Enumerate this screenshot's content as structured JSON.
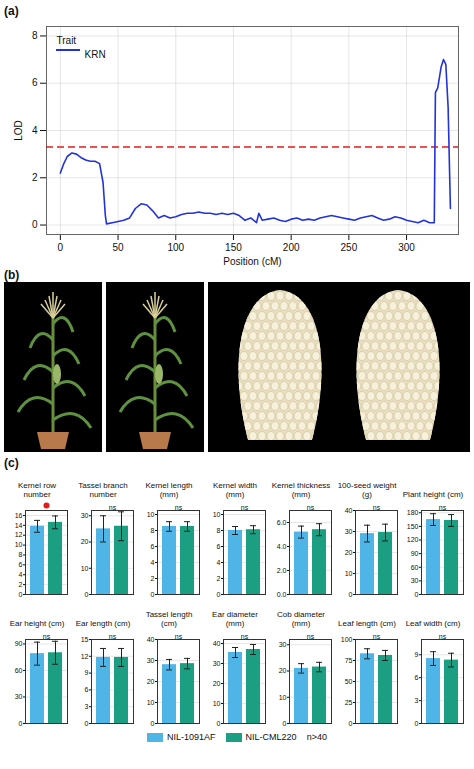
{
  "chart_data": [
    {
      "type": "line",
      "panel": "(a)",
      "xlabel": "Position (cM)",
      "ylabel": "LOD",
      "legend_title": "Trait",
      "legend": "top-left",
      "x": [
        0,
        3,
        6,
        10,
        14,
        18,
        22,
        26,
        30,
        34,
        37,
        39,
        40,
        45,
        50,
        55,
        60,
        65,
        70,
        75,
        80,
        85,
        90,
        95,
        100,
        105,
        110,
        115,
        120,
        125,
        130,
        135,
        140,
        145,
        150,
        155,
        160,
        165,
        170,
        172,
        175,
        180,
        185,
        190,
        195,
        200,
        205,
        210,
        215,
        220,
        225,
        230,
        235,
        240,
        245,
        250,
        255,
        260,
        265,
        270,
        275,
        280,
        285,
        290,
        295,
        300,
        305,
        310,
        315,
        320,
        324,
        325,
        327,
        330,
        332,
        334,
        336,
        338
      ],
      "series": [
        {
          "name": "KRN",
          "color": "#2233dd",
          "values": [
            2.2,
            2.6,
            2.9,
            3.05,
            3.0,
            2.85,
            2.75,
            2.7,
            2.7,
            2.6,
            1.8,
            0.4,
            0.05,
            0.1,
            0.15,
            0.2,
            0.3,
            0.7,
            0.9,
            0.85,
            0.6,
            0.3,
            0.4,
            0.3,
            0.35,
            0.45,
            0.5,
            0.5,
            0.55,
            0.5,
            0.5,
            0.45,
            0.5,
            0.45,
            0.5,
            0.4,
            0.2,
            0.3,
            0.1,
            0.5,
            0.2,
            0.25,
            0.3,
            0.2,
            0.15,
            0.25,
            0.3,
            0.2,
            0.25,
            0.2,
            0.3,
            0.35,
            0.4,
            0.35,
            0.3,
            0.25,
            0.2,
            0.3,
            0.35,
            0.4,
            0.3,
            0.2,
            0.25,
            0.35,
            0.3,
            0.2,
            0.15,
            0.1,
            0.2,
            0.1,
            0.1,
            5.6,
            5.8,
            6.7,
            7.0,
            6.8,
            5.0,
            0.7
          ]
        }
      ],
      "threshold": {
        "value": 3.3,
        "color": "#e41a1c",
        "line_style": "dashed"
      },
      "xlim": [
        -12,
        345
      ],
      "xticks": [
        0,
        50,
        100,
        150,
        200,
        250,
        300
      ],
      "ylim": [
        -0.4,
        8.4
      ],
      "yticks": [
        0,
        2,
        4,
        6,
        8
      ],
      "grid": true
    },
    {
      "type": "bar",
      "panel": "(c)",
      "legend": "bottom",
      "title": "Kernel row number",
      "categories": [
        "NIL-1091AF",
        "NIL-CML220"
      ],
      "values": [
        13.8,
        14.6
      ],
      "errors": [
        1.2,
        1.3
      ],
      "colors": [
        "#4fb4e6",
        "#1b9e82"
      ],
      "ylim": [
        0,
        17
      ],
      "yticks": [
        0,
        2,
        4,
        6,
        8,
        10,
        12,
        14,
        16
      ],
      "grid": true,
      "tick_labels": "y",
      "annotation": {
        "marker": "dot",
        "color": "#e41a1c"
      }
    },
    {
      "type": "bar",
      "title": "Tassel branch number",
      "categories": [
        "NIL-1091AF",
        "NIL-CML220"
      ],
      "values": [
        25,
        26
      ],
      "errors": [
        5,
        5.5
      ],
      "colors": [
        "#4fb4e6",
        "#1b9e82"
      ],
      "ylim": [
        0,
        32
      ],
      "yticks": [
        0,
        10,
        20,
        30
      ],
      "grid": true,
      "tick_labels": "y",
      "annotation": "ns"
    },
    {
      "type": "bar",
      "title": "Kernel length (mm)",
      "categories": [
        "NIL-1091AF",
        "NIL-CML220"
      ],
      "values": [
        8.5,
        8.5
      ],
      "errors": [
        0.6,
        0.6
      ],
      "colors": [
        "#4fb4e6",
        "#1b9e82"
      ],
      "ylim": [
        0,
        10.5
      ],
      "yticks": [
        0,
        2,
        4,
        6,
        8,
        10
      ],
      "grid": true,
      "tick_labels": "y",
      "annotation": "ns"
    },
    {
      "type": "bar",
      "title": "Kernel width (mm)",
      "categories": [
        "NIL-1091AF",
        "NIL-CML220"
      ],
      "values": [
        8.0,
        8.1
      ],
      "errors": [
        0.5,
        0.5
      ],
      "colors": [
        "#4fb4e6",
        "#1b9e82"
      ],
      "ylim": [
        0,
        10.5
      ],
      "yticks": [
        0,
        2,
        4,
        6,
        8,
        10
      ],
      "grid": true,
      "tick_labels": "y",
      "annotation": "ns"
    },
    {
      "type": "bar",
      "title": "Kernel thickness (mm)",
      "categories": [
        "NIL-1091AF",
        "NIL-CML220"
      ],
      "values": [
        5.2,
        5.4
      ],
      "errors": [
        0.5,
        0.5
      ],
      "colors": [
        "#4fb4e6",
        "#1b9e82"
      ],
      "ylim": [
        0,
        7
      ],
      "yticks": [
        0,
        2,
        4,
        6
      ],
      "grid": true,
      "tick_labels": "y",
      "annotation": "ns"
    },
    {
      "type": "bar",
      "title": "100-seed weight (g)",
      "categories": [
        "NIL-1091AF",
        "NIL-CML220"
      ],
      "values": [
        29,
        29.5
      ],
      "errors": [
        4,
        4
      ],
      "colors": [
        "#4fb4e6",
        "#1b9e82"
      ],
      "ylim": [
        0,
        40
      ],
      "yticks": [
        0,
        10,
        20,
        30,
        40
      ],
      "grid": true,
      "tick_labels": "y",
      "annotation": "ns"
    },
    {
      "type": "bar",
      "title": "Plant height (cm)",
      "categories": [
        "NIL-1091AF",
        "NIL-CML220"
      ],
      "values": [
        165,
        163
      ],
      "errors": [
        13,
        13
      ],
      "colors": [
        "#4fb4e6",
        "#1b9e82"
      ],
      "ylim": [
        0,
        185
      ],
      "yticks": [
        0,
        30,
        60,
        90,
        120,
        150,
        180
      ],
      "grid": true,
      "tick_labels": "y",
      "annotation": "ns"
    },
    {
      "type": "bar",
      "title": "Ear height (cm)",
      "categories": [
        "NIL-1091AF",
        "NIL-CML220"
      ],
      "values": [
        79,
        80
      ],
      "errors": [
        13,
        13
      ],
      "colors": [
        "#4fb4e6",
        "#1b9e82"
      ],
      "ylim": [
        0,
        95
      ],
      "yticks": [
        0,
        30,
        60,
        90
      ],
      "grid": true,
      "tick_labels": "y",
      "annotation": "ns"
    },
    {
      "type": "bar",
      "title": "Ear length (cm)",
      "categories": [
        "NIL-1091AF",
        "NIL-CML220"
      ],
      "values": [
        11.8,
        11.8
      ],
      "errors": [
        1.6,
        1.6
      ],
      "colors": [
        "#4fb4e6",
        "#1b9e82"
      ],
      "ylim": [
        0,
        15
      ],
      "yticks": [
        0,
        3,
        6,
        9,
        12,
        15
      ],
      "grid": true,
      "tick_labels": "y",
      "annotation": "ns"
    },
    {
      "type": "bar",
      "title": "Tassel length (cm)",
      "categories": [
        "NIL-1091AF",
        "NIL-CML220"
      ],
      "values": [
        28,
        28.5
      ],
      "errors": [
        2.5,
        2.5
      ],
      "colors": [
        "#4fb4e6",
        "#1b9e82"
      ],
      "ylim": [
        0,
        40
      ],
      "yticks": [
        0,
        10,
        20,
        30,
        40
      ],
      "grid": true,
      "tick_labels": "y",
      "annotation": "ns"
    },
    {
      "type": "bar",
      "title": "Ear diameter (mm)",
      "categories": [
        "NIL-1091AF",
        "NIL-CML220"
      ],
      "values": [
        35.5,
        37
      ],
      "errors": [
        2.5,
        2.5
      ],
      "colors": [
        "#4fb4e6",
        "#1b9e82"
      ],
      "ylim": [
        0,
        42
      ],
      "yticks": [
        0,
        10,
        20,
        30,
        40
      ],
      "grid": true,
      "tick_labels": "y",
      "annotation": "ns"
    },
    {
      "type": "bar",
      "title": "Cob diameter (mm)",
      "categories": [
        "NIL-1091AF",
        "NIL-CML220"
      ],
      "values": [
        21,
        21.5
      ],
      "errors": [
        1.8,
        1.8
      ],
      "colors": [
        "#4fb4e6",
        "#1b9e82"
      ],
      "ylim": [
        0,
        32
      ],
      "yticks": [
        0,
        10,
        20,
        30
      ],
      "grid": true,
      "tick_labels": "y",
      "annotation": "ns"
    },
    {
      "type": "bar",
      "title": "Leaf length (cm)",
      "categories": [
        "NIL-1091AF",
        "NIL-CML220"
      ],
      "values": [
        83,
        81
      ],
      "errors": [
        6,
        6
      ],
      "colors": [
        "#4fb4e6",
        "#1b9e82"
      ],
      "ylim": [
        0,
        100
      ],
      "yticks": [
        0,
        25,
        50,
        75,
        100
      ],
      "grid": true,
      "tick_labels": "y",
      "annotation": "ns"
    },
    {
      "type": "bar",
      "title": "Leaf width (cm)",
      "categories": [
        "NIL-1091AF",
        "NIL-CML220"
      ],
      "values": [
        8.5,
        8.3
      ],
      "errors": [
        0.9,
        0.9
      ],
      "colors": [
        "#4fb4e6",
        "#1b9e82"
      ],
      "ylim": [
        0,
        11
      ],
      "yticks": [
        0,
        3,
        6,
        9
      ],
      "grid": true,
      "tick_labels": "y",
      "annotation": "ns"
    }
  ],
  "photos": {
    "panel": "(b)"
  },
  "sample_size": "n>40"
}
